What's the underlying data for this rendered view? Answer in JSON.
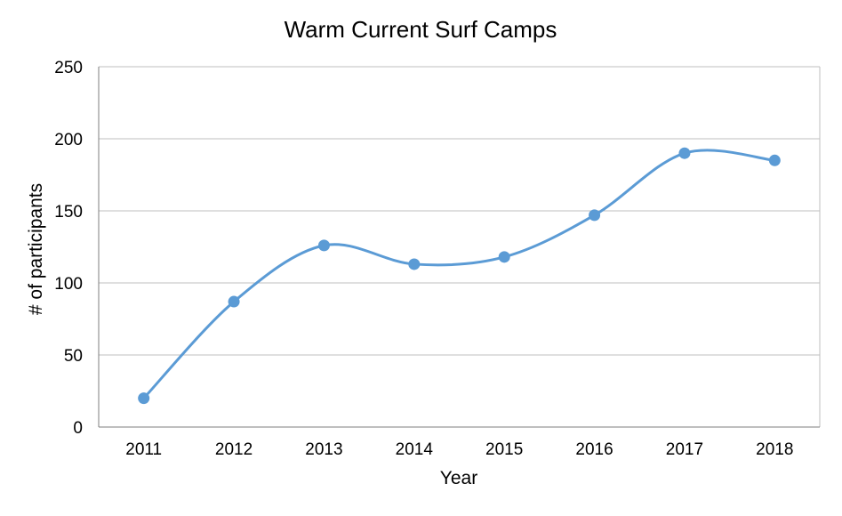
{
  "chart_data": {
    "type": "line",
    "title": "Warm Current Surf Camps",
    "xlabel": "Year",
    "ylabel": "# of participants",
    "categories": [
      "2011",
      "2012",
      "2013",
      "2014",
      "2015",
      "2016",
      "2017",
      "2018"
    ],
    "series": [
      {
        "values": [
          20,
          87,
          126,
          113,
          118,
          147,
          190,
          185
        ],
        "color": "#5b9bd5"
      }
    ],
    "ylim": [
      0,
      250
    ],
    "yticks": [
      0,
      50,
      100,
      150,
      200,
      250
    ],
    "grid": true,
    "smooth": true,
    "legend": "none"
  }
}
